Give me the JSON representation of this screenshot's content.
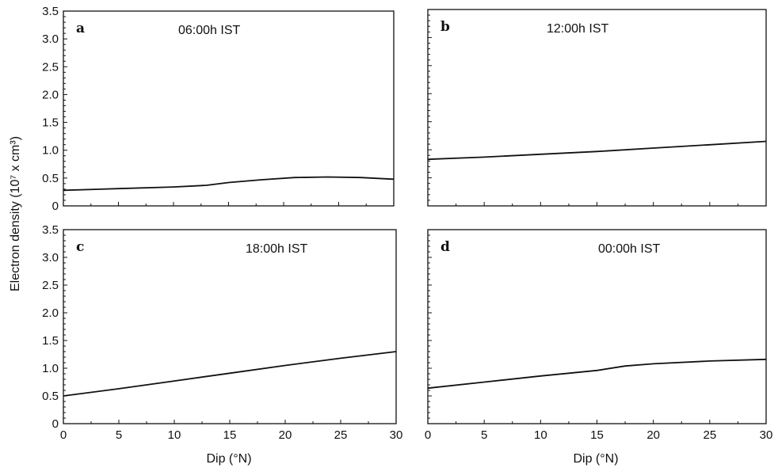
{
  "ylabel": "Electron density (10⁷ x cm³)",
  "xlabel": "Dip (°N)",
  "x_ticks": [
    "0",
    "5",
    "10",
    "15",
    "20",
    "25",
    "30"
  ],
  "y_ticks": [
    "0",
    "0.5",
    "1.0",
    "1.5",
    "2.0",
    "2.5",
    "3.0",
    "3.5"
  ],
  "colors": {
    "line": "#111111",
    "axes": "#111111",
    "background": "#ffffff"
  },
  "chart_data": [
    {
      "type": "line",
      "panel": "a",
      "title": "06:00h IST",
      "xlim": [
        0,
        30
      ],
      "ylim": [
        0,
        3.5
      ],
      "grid": false,
      "x": [
        0,
        5,
        10,
        13,
        15,
        18,
        21,
        24,
        27,
        30
      ],
      "y": [
        0.28,
        0.31,
        0.34,
        0.37,
        0.42,
        0.47,
        0.51,
        0.52,
        0.51,
        0.48
      ]
    },
    {
      "type": "line",
      "panel": "b",
      "title": "12:00h IST",
      "xlim": [
        0,
        30
      ],
      "ylim": [
        0,
        3.5
      ],
      "grid": false,
      "x": [
        0,
        5,
        10,
        15,
        20,
        25,
        30
      ],
      "y": [
        0.83,
        0.87,
        0.92,
        0.97,
        1.03,
        1.09,
        1.15
      ]
    },
    {
      "type": "line",
      "panel": "c",
      "title": "18:00h IST",
      "xlim": [
        0,
        30
      ],
      "ylim": [
        0,
        3.5
      ],
      "grid": false,
      "x": [
        0,
        5,
        10,
        15,
        20,
        25,
        30
      ],
      "y": [
        0.5,
        0.63,
        0.77,
        0.91,
        1.05,
        1.18,
        1.3
      ]
    },
    {
      "type": "line",
      "panel": "d",
      "title": "00:00h IST",
      "xlim": [
        0,
        30
      ],
      "ylim": [
        0,
        3.5
      ],
      "grid": false,
      "x": [
        0,
        5,
        10,
        15,
        17.5,
        20,
        25,
        30
      ],
      "y": [
        0.64,
        0.75,
        0.86,
        0.96,
        1.04,
        1.08,
        1.13,
        1.16
      ]
    }
  ]
}
